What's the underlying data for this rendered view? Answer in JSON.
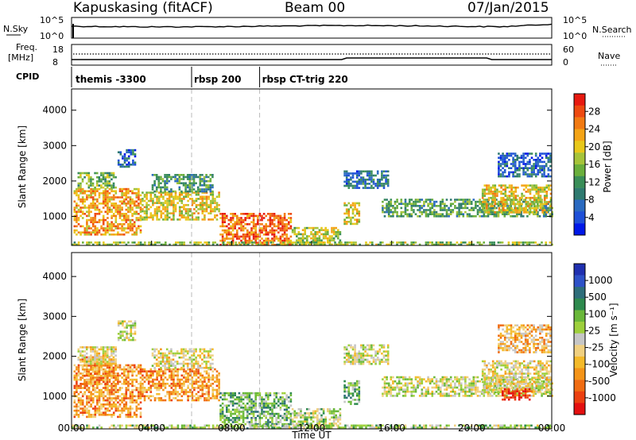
{
  "header": {
    "station": "Kapuskasing (fitACF)",
    "beam": "Beam 00",
    "date": "07/Jan/2015"
  },
  "nsky_panel": {
    "left_label": "N.Sky",
    "left_ticks": [
      "10^5",
      "10^0"
    ],
    "right_ticks": [
      "10^5",
      "10^0"
    ],
    "right_label": "N.Search"
  },
  "freq_panel": {
    "left_label_top": "Freq.",
    "left_label_unit": "[MHz]",
    "left_ticks": [
      "18",
      "8"
    ],
    "right_ticks": [
      "60",
      "0"
    ],
    "right_label": "Nave"
  },
  "cpid": {
    "label": "CPID",
    "modes": [
      {
        "name": "themis -3300",
        "start_hour": 0
      },
      {
        "name": "rbsp 200",
        "start_hour": 6
      },
      {
        "name": "rbsp CT-trig 220",
        "start_hour": 9.4
      }
    ]
  },
  "chart_data": [
    {
      "type": "heatmap",
      "quantity": "Power",
      "ylabel": "Slant Range [km]",
      "ylim": [
        180,
        4600
      ],
      "yticks": [
        1000,
        2000,
        3000,
        4000
      ],
      "colorbar": {
        "label": "Power [dB]",
        "range": [
          0,
          32
        ],
        "ticks": [
          "4",
          "8",
          "12",
          "16",
          "20",
          "24",
          "28"
        ],
        "colors": [
          "#0018e8",
          "#1e50d8",
          "#2a6ac0",
          "#2f7a70",
          "#3a8e58",
          "#6aaf3c",
          "#a6c43a",
          "#e8c81a",
          "#f4a416",
          "#f27a12",
          "#ee4a10",
          "#e81a10"
        ]
      },
      "regions": [
        {
          "t": [
            0.1,
            3.5
          ],
          "r": [
            480,
            1800
          ],
          "level": 0.72
        },
        {
          "t": [
            0.3,
            2.2
          ],
          "r": [
            1800,
            2250
          ],
          "level": 0.45
        },
        {
          "t": [
            2.3,
            3.2
          ],
          "r": [
            2400,
            2900
          ],
          "level": 0.2
        },
        {
          "t": [
            3.5,
            7.4
          ],
          "r": [
            900,
            1700
          ],
          "level": 0.6
        },
        {
          "t": [
            4.0,
            7.0
          ],
          "r": [
            1700,
            2200
          ],
          "level": 0.35
        },
        {
          "t": [
            7.4,
            11.0
          ],
          "r": [
            200,
            1100
          ],
          "level": 0.82
        },
        {
          "t": [
            11.0,
            13.4
          ],
          "r": [
            220,
            700
          ],
          "level": 0.55
        },
        {
          "t": [
            13.6,
            15.8
          ],
          "r": [
            1800,
            2300
          ],
          "level": 0.25
        },
        {
          "t": [
            13.6,
            14.4
          ],
          "r": [
            800,
            1400
          ],
          "level": 0.6
        },
        {
          "t": [
            15.5,
            24.0
          ],
          "r": [
            1000,
            1500
          ],
          "level": 0.4
        },
        {
          "t": [
            20.5,
            24.0
          ],
          "r": [
            1100,
            1900
          ],
          "level": 0.62
        },
        {
          "t": [
            21.3,
            23.9
          ],
          "r": [
            2100,
            2800
          ],
          "level": 0.22
        },
        {
          "t": [
            0.0,
            24.0
          ],
          "r": [
            190,
            290
          ],
          "level": 0.5
        }
      ]
    },
    {
      "type": "heatmap",
      "quantity": "Velocity",
      "ylabel": "Slant Range [km]",
      "xlabel": "Time UT",
      "ylim": [
        180,
        4600
      ],
      "yticks": [
        1000,
        2000,
        3000,
        4000
      ],
      "xticks": [
        "00:00",
        "04:00",
        "08:00",
        "12:00",
        "16:00",
        "20:00",
        "00:00"
      ],
      "xlim_hours": [
        0,
        24
      ],
      "colorbar": {
        "label": "Velocity [m s⁻¹]",
        "ticks": [
          "1000",
          "500",
          "100",
          "25",
          "-25",
          "-100",
          "-500",
          "-1000"
        ],
        "colors": [
          "#2030b0",
          "#2e52c8",
          "#2e6e7a",
          "#2e8a4e",
          "#6ab83a",
          "#9ed03c",
          "#c6c6c6",
          "#f0d080",
          "#f4ba2a",
          "#f49418",
          "#f06c12",
          "#ec4010",
          "#e41010"
        ]
      },
      "regions": [
        {
          "t": [
            0.1,
            3.5
          ],
          "r": [
            480,
            1800
          ],
          "level": 0.72
        },
        {
          "t": [
            0.5,
            2.2
          ],
          "r": [
            1300,
            2000
          ],
          "level": 0.73
        },
        {
          "t": [
            0.3,
            2.2
          ],
          "r": [
            1800,
            2250
          ],
          "level": 0.55
        },
        {
          "t": [
            2.3,
            3.2
          ],
          "r": [
            2400,
            2900
          ],
          "level": 0.5
        },
        {
          "t": [
            3.5,
            7.4
          ],
          "r": [
            900,
            1700
          ],
          "level": 0.72
        },
        {
          "t": [
            4.0,
            7.0
          ],
          "r": [
            1700,
            2200
          ],
          "level": 0.55
        },
        {
          "t": [
            7.4,
            11.0
          ],
          "r": [
            200,
            1100
          ],
          "level": 0.35
        },
        {
          "t": [
            11.0,
            13.4
          ],
          "r": [
            220,
            700
          ],
          "level": 0.45
        },
        {
          "t": [
            13.6,
            15.8
          ],
          "r": [
            1800,
            2300
          ],
          "level": 0.5
        },
        {
          "t": [
            13.6,
            14.4
          ],
          "r": [
            800,
            1400
          ],
          "level": 0.35
        },
        {
          "t": [
            15.5,
            24.0
          ],
          "r": [
            1000,
            1500
          ],
          "level": 0.5
        },
        {
          "t": [
            20.5,
            24.0
          ],
          "r": [
            1100,
            1900
          ],
          "level": 0.55
        },
        {
          "t": [
            21.5,
            23.0
          ],
          "r": [
            900,
            1200
          ],
          "level": 0.9
        },
        {
          "t": [
            21.3,
            23.9
          ],
          "r": [
            2100,
            2800
          ],
          "level": 0.65
        },
        {
          "t": [
            0.0,
            24.0
          ],
          "r": [
            190,
            290
          ],
          "level": 0.45
        }
      ]
    }
  ]
}
